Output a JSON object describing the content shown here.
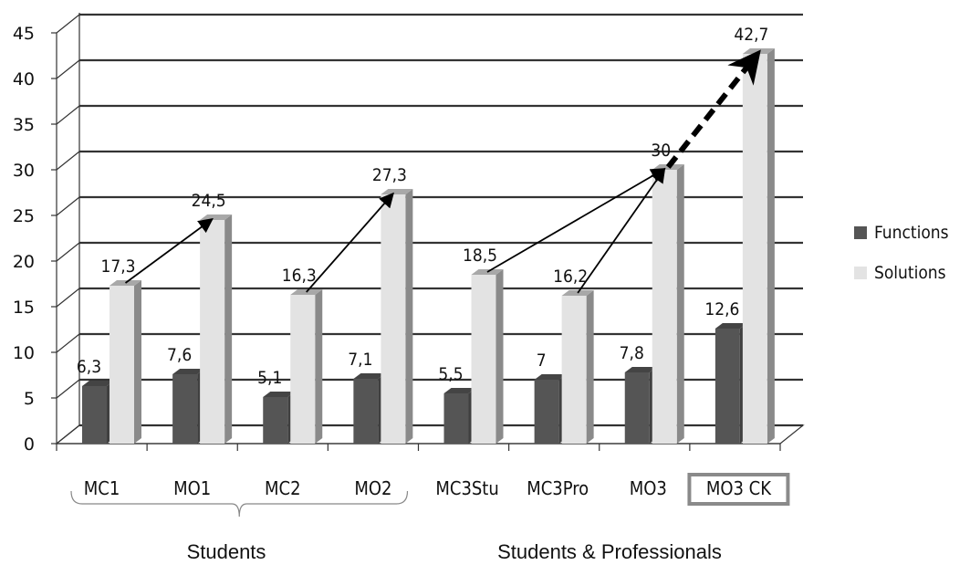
{
  "chart_data": {
    "type": "bar",
    "categories": [
      "MC1",
      "MO1",
      "MC2",
      "MO2",
      "MC3Stu",
      "MC3Pro",
      "MO3",
      "MO3 CK"
    ],
    "series": [
      {
        "name": "Functions",
        "values": [
          6.3,
          7.6,
          5.1,
          7.1,
          5.5,
          7,
          7.8,
          12.6
        ],
        "value_labels": [
          "6,3",
          "7,6",
          "5,1",
          "7,1",
          "5,5",
          "7",
          "7,8",
          "12,6"
        ],
        "color": "#555555"
      },
      {
        "name": "Solutions",
        "values": [
          17.3,
          24.5,
          16.3,
          27.3,
          18.5,
          16.2,
          30,
          42.7
        ],
        "value_labels": [
          "17,3",
          "24,5",
          "16,3",
          "27,3",
          "18,5",
          "16,2",
          "30",
          "42,7"
        ],
        "color": "#e3e3e3"
      }
    ],
    "y_ticks": [
      "0",
      "5",
      "10",
      "15",
      "20",
      "25",
      "30",
      "35",
      "40",
      "45"
    ],
    "ylim": [
      0,
      45
    ],
    "grid": true,
    "legend_position": "right",
    "highlighted_category": "MO3 CK",
    "groups": [
      {
        "label": "Students",
        "categories": [
          "MC1",
          "MO1",
          "MC2",
          "MO2"
        ]
      },
      {
        "label": "Students & Professionals",
        "categories": [
          "MC3Stu",
          "MC3Pro",
          "MO3",
          "MO3 CK"
        ]
      }
    ],
    "arrows": [
      {
        "from": "MC1",
        "to": "MO1",
        "series": "Solutions",
        "style": "solid"
      },
      {
        "from": "MC2",
        "to": "MO2",
        "series": "Solutions",
        "style": "solid"
      },
      {
        "from": "MC3Stu",
        "to": "MO3",
        "series": "Solutions",
        "style": "solid"
      },
      {
        "from": "MC3Pro",
        "to": "MO3",
        "series": "Solutions",
        "style": "solid"
      },
      {
        "from": "MO3",
        "to": "MO3 CK",
        "series": "Solutions",
        "style": "dashed-bold"
      }
    ]
  }
}
